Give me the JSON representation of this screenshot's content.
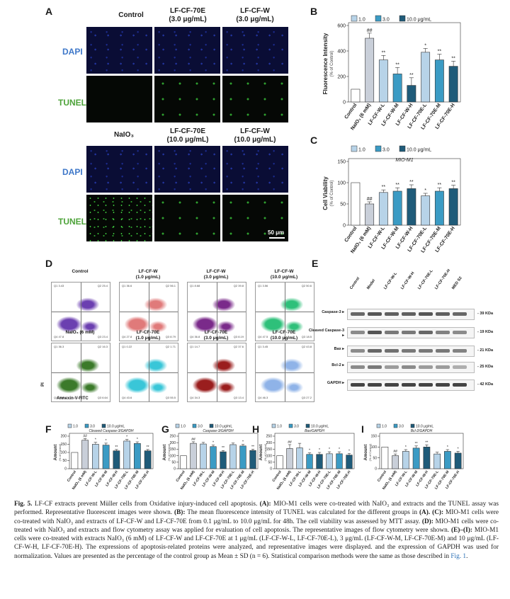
{
  "colors": {
    "c1": "#b7d3e8",
    "c3": "#3b9bc4",
    "c10": "#1f5b79",
    "control": "#ffffff",
    "model": "#c9cfd9"
  },
  "panel_a": {
    "letter": "A",
    "top_cols": [
      {
        "line1": "Control",
        "line2": ""
      },
      {
        "line1": "LF-CF-70E",
        "line2": "(3.0 μg/mL)"
      },
      {
        "line1": "LF-CF-W",
        "line2": "(3.0 μg/mL)"
      }
    ],
    "bottom_cols": [
      {
        "line1": "NaIO₃",
        "line2": ""
      },
      {
        "line1": "LF-CF-70E",
        "line2": "(10.0 μg/mL)"
      },
      {
        "line1": "LF-CF-W",
        "line2": "(10.0 μg/mL)"
      }
    ],
    "row_dapi": "DAPI",
    "row_tunel": "TUNEL",
    "scale": "50 μm"
  },
  "panel_b": {
    "letter": "B"
  },
  "panel_c": {
    "letter": "C"
  },
  "panel_d": {
    "letter": "D",
    "titles": [
      {
        "line1": "Control",
        "line2": ""
      },
      {
        "line1": "LF-CF-W",
        "line2": "(1.0 μg/mL)"
      },
      {
        "line1": "LF-CF-W",
        "line2": "(3.0 μg/mL)"
      },
      {
        "line1": "LF-CF-W",
        "line2": "(10.0 μg/mL)"
      },
      {
        "line1": "NaIO₃ (6 mM)",
        "line2": ""
      },
      {
        "line1": "LF-CF-70E",
        "line2": "(1.0 μg/mL)"
      },
      {
        "line1": "LF-CF-70E",
        "line2": "(3.0 μg/mL)"
      },
      {
        "line1": "LF-CF-70E",
        "line2": "(10.0 μg/mL)"
      }
    ],
    "quadrants": [
      [
        "3.43",
        "25.4",
        "47.8",
        "23.4"
      ],
      [
        "36.6",
        "56.1",
        "27.8",
        "8.79"
      ],
      [
        "8.68",
        "39.8",
        "36.8",
        "8.19"
      ],
      [
        "3.56",
        "50.6",
        "47.5",
        "18.5"
      ],
      [
        "36.3",
        "16.3",
        "23.0",
        "6.64"
      ],
      [
        "0.22",
        "1.71",
        "43.6",
        "55.5"
      ],
      [
        "14.7",
        "37.6",
        "34.3",
        "13.4"
      ],
      [
        "3.45",
        "43.8",
        "46.3",
        "27.2"
      ]
    ],
    "xlabel": "Annexin-V-FITC",
    "ylabel": "PI"
  },
  "panel_e": {
    "letter": "E",
    "lanes": [
      "Control",
      "Model",
      "LF-CF-W-L",
      "LF-CF-W-H",
      "LF-CF-70E-L",
      "LF-CF-70E-H",
      "MED S2"
    ],
    "rows": [
      {
        "name": "Caspase-3",
        "kda": "39 KDa"
      },
      {
        "name": "Cleaved Caspase-3",
        "kda": "19 KDa"
      },
      {
        "name": "Bax",
        "kda": "21 KDa"
      },
      {
        "name": "Bcl-2",
        "kda": "25 KDa"
      },
      {
        "name": "GAPDH",
        "kda": "42 KDa"
      }
    ]
  },
  "caption": {
    "title": "Fig. 5.",
    "text_1": " LF-CF extracts prevent Müller cells from Oxidative injury-induced cell apoptosis. ",
    "a_lab": "(A):",
    "a_text": " MIO-M1 cells were co-treated with NaIO₃ and extracts and the TUNEL assay was performed. Representative fluorescent images were shown. ",
    "b_lab": "(B):",
    "b_text": " The mean fluorescence intensity of TUNEL was calculated for the different groups in ",
    "b_ref": "(A).",
    "c_lab": "(C):",
    "c_text": " MIO-M1 cells were co-treated with NaIO₃ and extracts of LF-CF-W and LF-CF-70E from 0.1 μg/mL to 10.0 μg/mL for 48h. The cell viability was assessed by MTT assay. ",
    "d_lab": "(D):",
    "d_text": " MIO-M1 cells were co-treated with NaIO₃ and extracts and flow cytometry assay was applied for evaluation of cell apoptosis. The representative images of flow cytometry were shown. ",
    "ei_lab": "(E)–(I):",
    "ei_text": " MIO-M1 cells were co-treated with extracts NaIO₃ (6 mM) of LF-CF-W and LF-CF-70E at 1 μg/mL (LF-CF-W-L, LF-CF-70E-L), 3 μg/mL (LF-CF-W-M, LF-CF-70E-M) and 10 μg/mL (LF-CF-W-H, LF-CF-70E-H). The expressions of apoptosis-related proteins were analyzed, and representative images were displayed. and the expression of GAPDH was used for normalization. Values are presented as the percentage of the control group as Mean ± SD (n = 6). Statistical comparison methods were the same as those described in ",
    "fig_ref": "Fig. 1",
    "end": "."
  },
  "chart_data": [
    {
      "id": "B",
      "type": "bar",
      "title": "",
      "legend": [
        "1.0",
        "3.0",
        "10.0 μg/mL"
      ],
      "ylabel": "Fluorescence Intensity",
      "ylabel2": "(% of Control)",
      "ylim": [
        0,
        600
      ],
      "yticks": [
        0,
        200,
        400,
        600
      ],
      "categories": [
        "Control",
        "NaIO₃ (6 mM)",
        "LF-CF-W-L",
        "LF-CF-W-M",
        "LF-CF-W-H",
        "LF-CF-70E-L",
        "LF-CF-70E-M",
        "LF-CF-70E-H"
      ],
      "values": [
        100,
        500,
        330,
        220,
        130,
        390,
        330,
        280
      ],
      "errors": [
        0,
        40,
        35,
        50,
        60,
        30,
        45,
        40
      ],
      "colors": [
        "control",
        "model",
        "c1",
        "c3",
        "c10",
        "c1",
        "c3",
        "c10"
      ],
      "marks": [
        "",
        "##",
        "**",
        "**",
        "**",
        "*",
        "**",
        "**"
      ]
    },
    {
      "id": "C",
      "type": "bar",
      "title": "MIO-M1",
      "legend": [
        "1.0",
        "3.0",
        "10.0 μg/mL"
      ],
      "ylabel": "Cell Viability",
      "ylabel2": "(% of Control)",
      "ylim": [
        0,
        150
      ],
      "yticks": [
        0,
        50,
        100,
        150
      ],
      "categories": [
        "Control",
        "NaIO₃ (6 mM)",
        "LF-CF-W-L",
        "LF-CF-W-M",
        "LF-CF-W-H",
        "LF-CF-70E-L",
        "LF-CF-70E-M",
        "LF-CF-70E-H"
      ],
      "values": [
        100,
        50,
        77,
        80,
        86,
        69,
        80,
        86
      ],
      "errors": [
        0,
        5,
        6,
        8,
        9,
        6,
        8,
        8
      ],
      "colors": [
        "control",
        "model",
        "c1",
        "c3",
        "c10",
        "c1",
        "c3",
        "c10"
      ],
      "marks": [
        "",
        "##",
        "**",
        "**",
        "**",
        "*",
        "**",
        "**"
      ]
    },
    {
      "id": "F",
      "type": "bar",
      "title": "Cleaved Caspase-3/GAPDH",
      "legend": [
        "1.0",
        "3.0",
        "10.0 μg/mL"
      ],
      "ylabel": "Amount",
      "ylabel2": "(% of Control)",
      "ylim": [
        0,
        200
      ],
      "yticks": [
        0,
        50,
        100,
        150,
        200
      ],
      "categories": [
        "Control",
        "NaIO₃ (6 mM)",
        "LF-CF-W-L",
        "LF-CF-W-M",
        "LF-CF-W-H",
        "LF-CF-70E-L",
        "LF-CF-70E-M",
        "LF-CF-70E-H"
      ],
      "values": [
        100,
        175,
        150,
        145,
        110,
        170,
        155,
        110
      ],
      "errors": [
        0,
        10,
        12,
        12,
        8,
        10,
        10,
        8
      ],
      "colors": [
        "control",
        "model",
        "c1",
        "c3",
        "c10",
        "c1",
        "c3",
        "c10"
      ],
      "marks": [
        "",
        "##",
        "*",
        "*",
        "**",
        "*",
        "*",
        "**"
      ]
    },
    {
      "id": "G",
      "type": "bar",
      "title": "Caspase-3/GAPDH",
      "legend": [
        "1.0",
        "3.0",
        "10.0 μg/mL"
      ],
      "ylabel": "Amount",
      "ylabel2": "(% of Control)",
      "ylim": [
        0,
        250
      ],
      "yticks": [
        0,
        50,
        100,
        150,
        200,
        250
      ],
      "categories": [
        "Control",
        "NaIO₃ (6 mM)",
        "LF-CF-W-L",
        "LF-CF-W-M",
        "LF-CF-W-H",
        "LF-CF-70E-L",
        "LF-CF-70E-M",
        "LF-CF-70E-H"
      ],
      "values": [
        100,
        195,
        190,
        170,
        130,
        185,
        175,
        140
      ],
      "errors": [
        0,
        12,
        12,
        12,
        10,
        12,
        12,
        10
      ],
      "colors": [
        "control",
        "model",
        "c1",
        "c3",
        "c10",
        "c1",
        "c3",
        "c10"
      ],
      "marks": [
        "",
        "##",
        "",
        "*",
        "**",
        "",
        "*",
        "**"
      ]
    },
    {
      "id": "H",
      "type": "bar",
      "title": "Bax/GAPDH",
      "legend": [
        "1.0",
        "3.0",
        "10.0 μg/mL"
      ],
      "ylabel": "Amount",
      "ylabel2": "(% of Control)",
      "ylim": [
        0,
        250
      ],
      "yticks": [
        0,
        50,
        100,
        150,
        200,
        250
      ],
      "categories": [
        "Control",
        "NaIO₃ (6 mM)",
        "LF-CF-W-L",
        "LF-CF-W-M",
        "LF-CF-W-H",
        "LF-CF-70E-L",
        "LF-CF-70E-M",
        "LF-CF-70E-H"
      ],
      "values": [
        100,
        155,
        160,
        110,
        110,
        115,
        115,
        105
      ],
      "errors": [
        0,
        30,
        35,
        12,
        15,
        15,
        15,
        12
      ],
      "colors": [
        "control",
        "model",
        "c1",
        "c3",
        "c10",
        "c1",
        "c3",
        "c10"
      ],
      "marks": [
        "",
        "##",
        "",
        "*",
        "*",
        "*",
        "*",
        "*"
      ]
    },
    {
      "id": "I",
      "type": "bar",
      "title": "Bcl-2/GAPDH",
      "legend": [
        "1.0",
        "3.0",
        "10.0 μg/mL"
      ],
      "ylabel": "Amount",
      "ylabel2": "(% of Control)",
      "ylim": [
        0,
        150
      ],
      "yticks": [
        0,
        50,
        100,
        150
      ],
      "categories": [
        "Control",
        "NaIO₃ (6 mM)",
        "LF-CF-W-L",
        "LF-CF-W-M",
        "LF-CF-W-H",
        "LF-CF-70E-L",
        "LF-CF-70E-M",
        "LF-CF-70E-H"
      ],
      "values": [
        100,
        60,
        80,
        95,
        100,
        68,
        80,
        72
      ],
      "errors": [
        0,
        8,
        8,
        10,
        10,
        8,
        8,
        8
      ],
      "colors": [
        "control",
        "model",
        "c1",
        "c3",
        "c10",
        "c1",
        "c3",
        "c10"
      ],
      "marks": [
        "",
        "##",
        "*",
        "**",
        "**",
        "",
        "*",
        "*"
      ]
    }
  ]
}
